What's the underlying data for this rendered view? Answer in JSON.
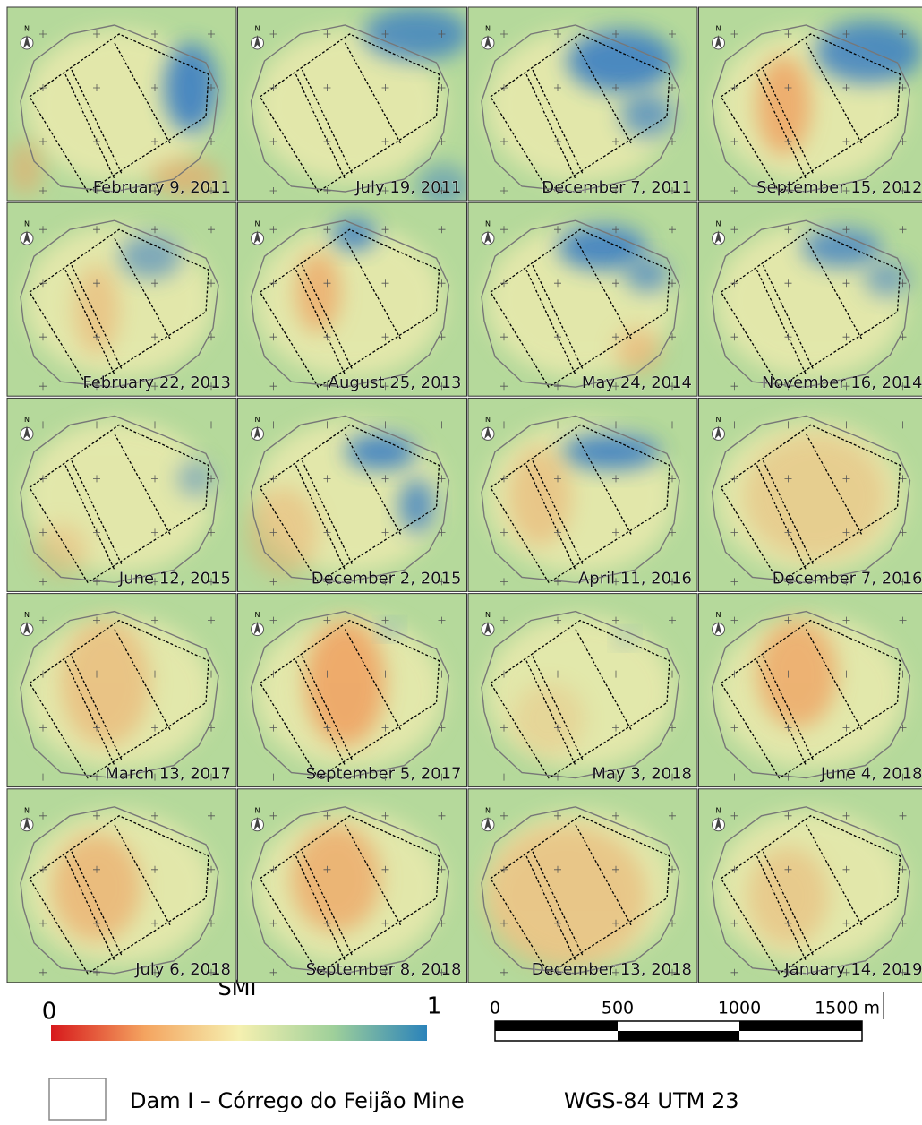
{
  "panels": [
    {
      "date": "February 9, 2011"
    },
    {
      "date": "July 19, 2011"
    },
    {
      "date": "December 7, 2011"
    },
    {
      "date": "September 15, 2012"
    },
    {
      "date": "February 22, 2013"
    },
    {
      "date": "August 25, 2013"
    },
    {
      "date": "May 24, 2014"
    },
    {
      "date": "November 16, 2014"
    },
    {
      "date": "June 12, 2015"
    },
    {
      "date": "December 2, 2015"
    },
    {
      "date": "April 11, 2016"
    },
    {
      "date": "December 7, 2016"
    },
    {
      "date": "March 13, 2017"
    },
    {
      "date": "September 5, 2017"
    },
    {
      "date": "May 3, 2018"
    },
    {
      "date": "June 4, 2018"
    },
    {
      "date": "July 6, 2018"
    },
    {
      "date": "September 8, 2018"
    },
    {
      "date": "December 13, 2018"
    },
    {
      "date": "January 14, 2019"
    }
  ],
  "north_label": "N",
  "legend": {
    "title": "SMI",
    "min": "0",
    "max": "1"
  },
  "scale_bar": {
    "labels": [
      "0",
      "500",
      "1000",
      "1500 m"
    ]
  },
  "dam_legend": "Dam I – Córrego do Feijão Mine",
  "projection": "WGS-84 UTM 23"
}
